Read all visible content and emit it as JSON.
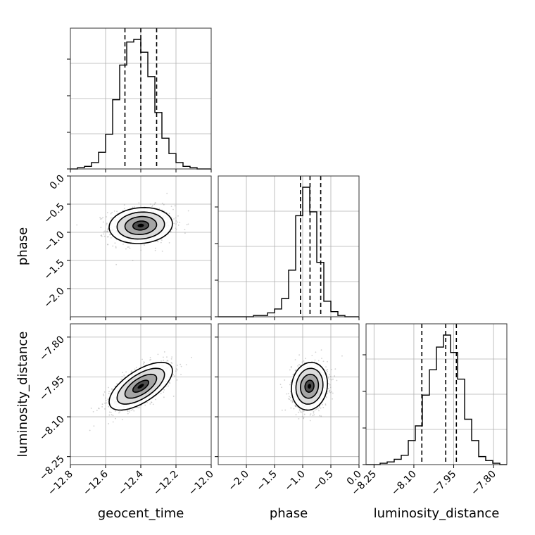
{
  "chart_data": {
    "type": "corner",
    "parameters": [
      "geocent_time",
      "phase",
      "luminosity_distance"
    ],
    "axis_labels": {
      "x": [
        "geocent_time",
        "phase",
        "luminosity_distance"
      ],
      "y": [
        "phase",
        "luminosity_distance"
      ]
    },
    "ranges": {
      "geocent_time": [
        -12.8,
        -12.0
      ],
      "phase": [
        -2.5,
        0.0
      ],
      "luminosity_distance": [
        -8.28,
        -7.75
      ]
    },
    "ticks": {
      "geocent_time": [
        -12.8,
        -12.6,
        -12.4,
        -12.2,
        -12.0
      ],
      "phase": [
        -2.0,
        -1.5,
        -1.0,
        -0.5,
        0.0
      ],
      "luminosity_distance": [
        -8.25,
        -8.1,
        -7.95,
        -7.8
      ]
    },
    "tick_labels": {
      "geocent_time": [
        "−12.8",
        "−12.6",
        "−12.4",
        "−12.2",
        "−12.0"
      ],
      "phase": [
        "−2.0",
        "−1.5",
        "−1.0",
        "−0.5",
        "0.0"
      ],
      "luminosity_distance": [
        "−8.25",
        "−8.10",
        "−7.95",
        "−7.80"
      ]
    },
    "quantiles": {
      "geocent_time": [
        -12.49,
        -12.4,
        -12.31
      ],
      "phase": [
        -1.04,
        -0.87,
        -0.68
      ],
      "luminosity_distance": [
        -8.07,
        -7.98,
        -7.94
      ]
    },
    "histograms": {
      "geocent_time": {
        "bin_edges": [
          -12.8,
          -12.76,
          -12.72,
          -12.68,
          -12.64,
          -12.6,
          -12.56,
          -12.52,
          -12.48,
          -12.44,
          -12.4,
          -12.36,
          -12.32,
          -12.28,
          -12.24,
          -12.2,
          -12.16,
          -12.12,
          -12.08,
          -12.04,
          -12.0
        ],
        "counts": [
          0,
          1,
          2,
          5,
          13,
          27,
          54,
          81,
          99,
          101,
          91,
          72,
          44,
          24,
          12,
          5,
          2,
          1,
          0,
          0
        ]
      },
      "phase": {
        "bin_edges": [
          -2.5,
          -2.375,
          -2.25,
          -2.125,
          -2.0,
          -1.875,
          -1.75,
          -1.625,
          -1.5,
          -1.375,
          -1.25,
          -1.125,
          -1.0,
          -0.875,
          -0.75,
          -0.625,
          -0.5,
          -0.375,
          -0.25,
          -0.125,
          0.0
        ],
        "counts": [
          0,
          0,
          0,
          0,
          0,
          1,
          1,
          3,
          6,
          14,
          36,
          78,
          100,
          81,
          42,
          12,
          4,
          1,
          0,
          0
        ]
      },
      "luminosity_distance": {
        "bin_edges": [
          -8.28,
          -8.2535,
          -8.227,
          -8.2005,
          -8.174,
          -8.1475,
          -8.121,
          -8.0945,
          -8.068,
          -8.0415,
          -8.015,
          -7.9885,
          -7.962,
          -7.9355,
          -7.909,
          -7.8825,
          -7.856,
          -7.8295,
          -7.803,
          -7.7765,
          -7.75
        ],
        "counts": [
          0,
          0,
          1,
          2,
          4,
          7,
          18,
          29,
          52,
          71,
          88,
          97,
          84,
          64,
          34,
          18,
          6,
          3,
          1,
          0
        ]
      }
    },
    "pairs": [
      {
        "x": "geocent_time",
        "y": "phase",
        "mean": [
          -12.4,
          -0.88
        ],
        "sd": [
          0.09,
          0.16
        ],
        "corr": 0.1
      },
      {
        "x": "geocent_time",
        "y": "luminosity_distance",
        "mean": [
          -12.4,
          -7.985
        ],
        "sd": [
          0.09,
          0.045
        ],
        "corr": 0.65
      },
      {
        "x": "phase",
        "y": "luminosity_distance",
        "mean": [
          -0.88,
          -7.985
        ],
        "sd": [
          0.16,
          0.045
        ],
        "corr": 0.1
      }
    ],
    "contour_levels": [
      "0.5 sigma",
      "1 sigma",
      "1.5 sigma",
      "2 sigma"
    ],
    "grid": true,
    "colors": {
      "contour": "#000000",
      "hist": "#000000",
      "grid": "#b0b0b0",
      "scatter": "#9a9a9a"
    }
  }
}
